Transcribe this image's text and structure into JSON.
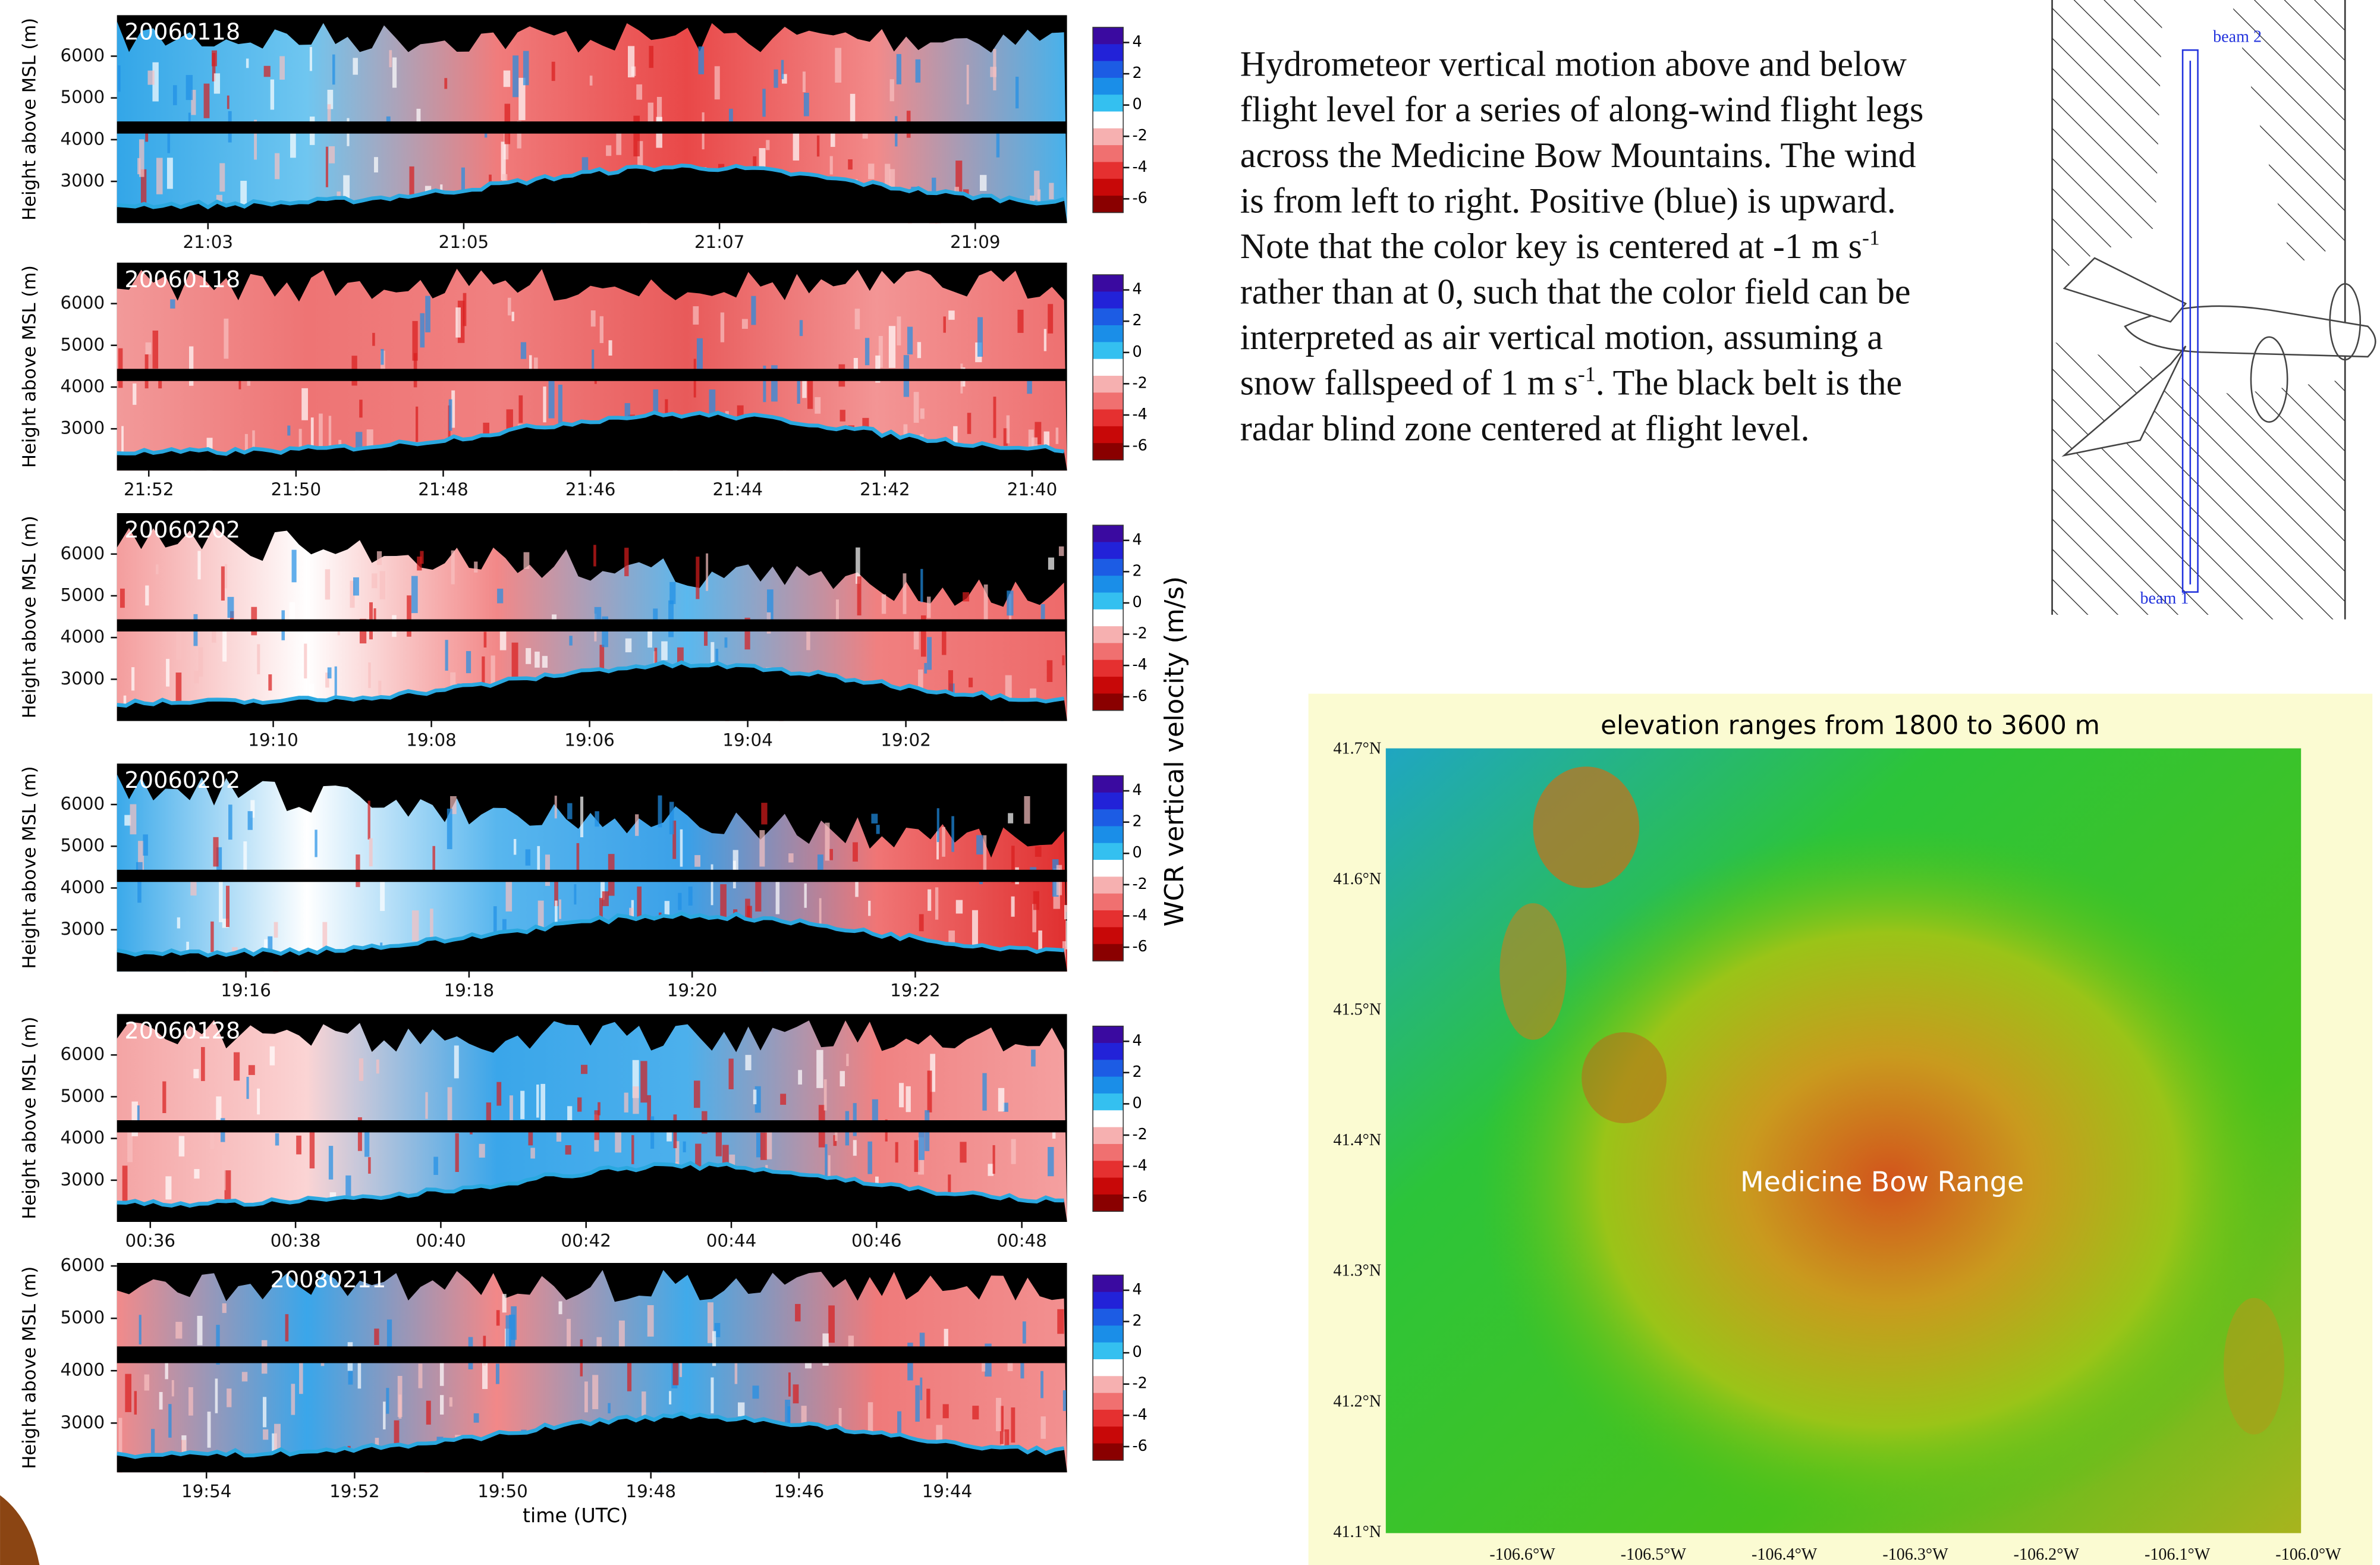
{
  "panels": [
    {
      "date": "20060118",
      "xticks": [
        "21:03",
        "21:05",
        "21:07",
        "21:09"
      ]
    },
    {
      "date": "20060118",
      "xticks": [
        "21:52",
        "21:50",
        "21:48",
        "21:46",
        "21:44",
        "21:42",
        "21:40"
      ]
    },
    {
      "date": "20060202",
      "xticks": [
        "19:10",
        "19:08",
        "19:06",
        "19:04",
        "19:02"
      ]
    },
    {
      "date": "20060202",
      "xticks": [
        "19:16",
        "19:18",
        "19:20",
        "19:22"
      ]
    },
    {
      "date": "20060128",
      "xticks": [
        "00:36",
        "00:38",
        "00:40",
        "00:42",
        "00:44",
        "00:46",
        "00:48"
      ]
    },
    {
      "date": "20080211",
      "xticks": [
        "19:54",
        "19:52",
        "19:50",
        "19:48",
        "19:46",
        "19:44"
      ]
    }
  ],
  "y_axis_label": "Height above MSL (m)",
  "yticks": [
    6000,
    5000,
    4000,
    3000
  ],
  "colorbar_ticks": [
    4,
    2,
    0,
    -2,
    -4,
    -6
  ],
  "colorbar_label": "WCR vertical velocity (m/s)",
  "x_axis_label": "time (UTC)",
  "caption": [
    {
      "text": "Hydrometeor vertical motion above and below flight level for a series of along-wind flight legs across the Medicine Bow Mountains. The wind is from left to right. Positive (blue) is upward. Note that the color key is centered at -1 m s"
    },
    {
      "sup": "-1"
    },
    {
      "text": " rather than at 0, such that the color field can be interpreted as air vertical motion, assuming a snow fallspeed of 1 m s"
    },
    {
      "sup": "-1"
    },
    {
      "text": ". The black belt is the radar blind zone centered at flight level."
    }
  ],
  "diagram": {
    "beam_top": "beam 2",
    "beam_bottom": "beam 1"
  },
  "map": {
    "title": "elevation ranges from 1800 to 3600 m",
    "label": "Medicine Bow Range",
    "lat_ticks": [
      "41.7°N",
      "41.6°N",
      "41.5°N",
      "41.4°N",
      "41.3°N",
      "41.2°N",
      "41.1°N"
    ],
    "lon_ticks": [
      "-106.6°W",
      "-106.5°W",
      "-106.4°W",
      "-106.3°W",
      "-106.2°W",
      "-106.1°W",
      "-106.0°W"
    ]
  }
}
